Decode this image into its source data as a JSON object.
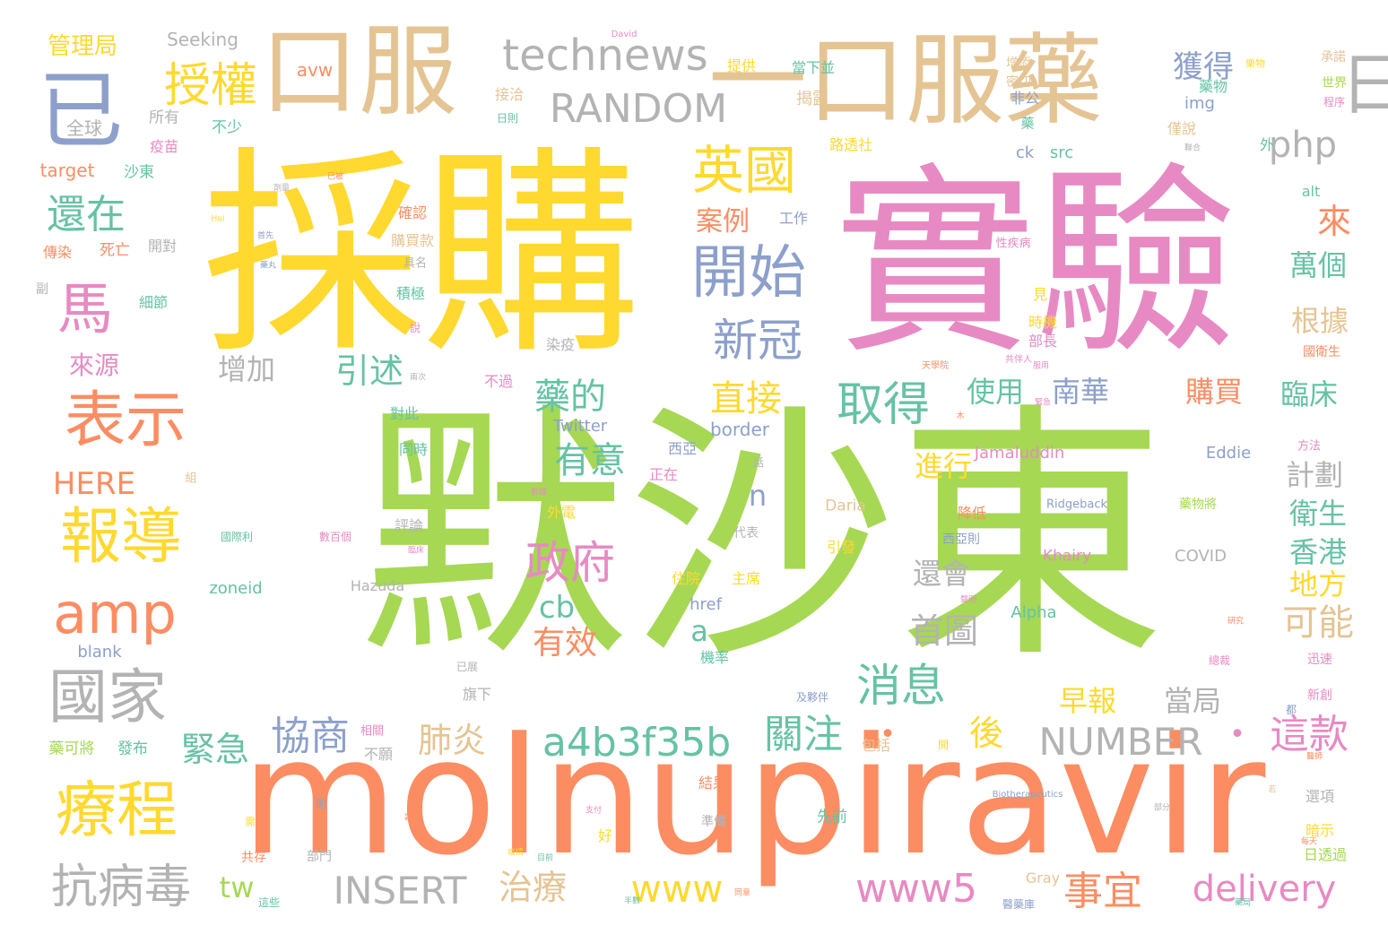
{
  "palette": {
    "green": "#a6d854",
    "yellow": "#ffd92f",
    "pink": "#e78ac3",
    "orange": "#fc8d62",
    "tan": "#e5c494",
    "teal": "#66c2a5",
    "blue": "#8da0cb",
    "gray": "#b3b3b3"
  },
  "words": [
    {
      "text": "默沙東",
      "weight": 100,
      "color": "green"
    },
    {
      "text": "採購",
      "weight": 68,
      "color": "yellow"
    },
    {
      "text": "實驗",
      "weight": 66,
      "color": "pink"
    },
    {
      "text": "molnupiravir",
      "weight": 50,
      "color": "orange"
    },
    {
      "text": "口服",
      "weight": 32,
      "color": "tan"
    },
    {
      "text": "一口服藥",
      "weight": 32,
      "color": "tan"
    },
    {
      "text": "已",
      "weight": 24,
      "color": "blue"
    },
    {
      "text": "日",
      "weight": 20,
      "color": "gray"
    },
    {
      "text": "表示",
      "weight": 18,
      "color": "orange"
    },
    {
      "text": "報導",
      "weight": 18,
      "color": "yellow"
    },
    {
      "text": "療程",
      "weight": 18,
      "color": "yellow"
    },
    {
      "text": "國家",
      "weight": 18,
      "color": "gray"
    },
    {
      "text": "開始",
      "weight": 17,
      "color": "blue"
    },
    {
      "text": "amp",
      "weight": 17,
      "color": "orange"
    },
    {
      "text": "馬",
      "weight": 17,
      "color": "pink"
    },
    {
      "text": "英國",
      "weight": 16,
      "color": "yellow"
    },
    {
      "text": "授權",
      "weight": 15,
      "color": "yellow"
    },
    {
      "text": "technews",
      "weight": 14,
      "color": "gray"
    },
    {
      "text": "取得",
      "weight": 14,
      "color": "teal"
    },
    {
      "text": "抗病毒",
      "weight": 14,
      "color": "gray"
    },
    {
      "text": "政府",
      "weight": 13,
      "color": "pink"
    },
    {
      "text": "新冠",
      "weight": 13,
      "color": "blue"
    },
    {
      "text": "消息",
      "weight": 13,
      "color": "teal"
    },
    {
      "text": "RANDOM",
      "weight": 12,
      "color": "gray"
    },
    {
      "text": "還在",
      "weight": 12,
      "color": "teal"
    },
    {
      "text": "a4b3f35b",
      "weight": 12,
      "color": "teal"
    },
    {
      "text": "協商",
      "weight": 12,
      "color": "blue"
    },
    {
      "text": "關注",
      "weight": 12,
      "color": "teal"
    },
    {
      "text": "•",
      "weight": 12,
      "color": "orange"
    },
    {
      "text": "NUMBER",
      "weight": 12,
      "color": "gray"
    },
    {
      "text": "•",
      "weight": 12,
      "color": "pink"
    },
    {
      "text": "這款",
      "weight": 12,
      "color": "pink"
    },
    {
      "text": "事宜",
      "weight": 12,
      "color": "orange"
    },
    {
      "text": "www5",
      "weight": 12,
      "color": "pink"
    },
    {
      "text": "INSERT",
      "weight": 12,
      "color": "gray"
    },
    {
      "text": "delivery",
      "weight": 12,
      "color": "pink"
    },
    {
      "text": "www",
      "weight": 12,
      "color": "yellow"
    },
    {
      "text": "php",
      "weight": 11,
      "color": "gray"
    },
    {
      "text": "獲得",
      "weight": 10,
      "color": "blue"
    },
    {
      "text": "直接",
      "weight": 11,
      "color": "yellow"
    },
    {
      "text": "有意",
      "weight": 11,
      "color": "teal"
    },
    {
      "text": "藥的",
      "weight": 11,
      "color": "teal"
    },
    {
      "text": "引述",
      "weight": 11,
      "color": "teal"
    },
    {
      "text": "肺炎",
      "weight": 11,
      "color": "tan"
    },
    {
      "text": "後",
      "weight": 11,
      "color": "yellow"
    },
    {
      "text": "首圖",
      "weight": 11,
      "color": "gray"
    },
    {
      "text": "可能",
      "weight": 11,
      "color": "tan"
    },
    {
      "text": "HERE",
      "weight": 10,
      "color": "orange"
    },
    {
      "text": "cb",
      "weight": 10,
      "color": "teal"
    },
    {
      "text": "有效",
      "weight": 10,
      "color": "orange"
    },
    {
      "text": "治療",
      "weight": 10,
      "color": "tan"
    },
    {
      "text": "緊急",
      "weight": 10,
      "color": "teal"
    },
    {
      "text": "來",
      "weight": 10,
      "color": "orange"
    },
    {
      "text": "案例",
      "weight": 9,
      "color": "orange"
    },
    {
      "text": "臨床",
      "weight": 9,
      "color": "teal"
    },
    {
      "text": "購買",
      "weight": 9,
      "color": "orange"
    },
    {
      "text": "使用",
      "weight": 9,
      "color": "teal"
    },
    {
      "text": "南華",
      "weight": 9,
      "color": "blue"
    },
    {
      "text": "進行",
      "weight": 9,
      "color": "yellow"
    },
    {
      "text": "還會",
      "weight": 9,
      "color": "gray"
    },
    {
      "text": "早報",
      "weight": 9,
      "color": "yellow"
    },
    {
      "text": "當局",
      "weight": 9,
      "color": "gray"
    },
    {
      "text": "增加",
      "weight": 9,
      "color": "gray"
    },
    {
      "text": "tw",
      "weight": 9,
      "color": "green"
    },
    {
      "text": "根據",
      "weight": 9,
      "color": "tan"
    },
    {
      "text": "萬個",
      "weight": 9,
      "color": "teal"
    },
    {
      "text": "計劃",
      "weight": 9,
      "color": "gray"
    },
    {
      "text": "衛生",
      "weight": 9,
      "color": "teal"
    },
    {
      "text": "香港",
      "weight": 9,
      "color": "teal"
    },
    {
      "text": "地方",
      "weight": 9,
      "color": "yellow"
    },
    {
      "text": "n",
      "weight": 9,
      "color": "blue"
    },
    {
      "text": "a",
      "weight": 9,
      "color": "teal"
    },
    {
      "text": "來源",
      "weight": 8,
      "color": "pink"
    },
    {
      "text": "管理局",
      "weight": 7,
      "color": "yellow"
    },
    {
      "text": "Seeking",
      "weight": 5,
      "color": "gray"
    },
    {
      "text": "avw",
      "weight": 5,
      "color": "orange"
    },
    {
      "text": "全球",
      "weight": 5,
      "color": "gray"
    },
    {
      "text": "所有",
      "weight": 5,
      "color": "gray"
    },
    {
      "text": "不少",
      "weight": 5,
      "color": "teal"
    },
    {
      "text": "target",
      "weight": 5,
      "color": "orange"
    },
    {
      "text": "沙東",
      "weight": 5,
      "color": "teal"
    },
    {
      "text": "疫苗",
      "weight": 4,
      "color": "pink"
    },
    {
      "text": "傳染",
      "weight": 4,
      "color": "orange"
    },
    {
      "text": "死亡",
      "weight": 4,
      "color": "orange"
    },
    {
      "text": "開對",
      "weight": 4,
      "color": "gray"
    },
    {
      "text": "副",
      "weight": 4,
      "color": "gray"
    },
    {
      "text": "細節",
      "weight": 4,
      "color": "teal"
    },
    {
      "text": "藥物",
      "weight": 4,
      "color": "teal"
    },
    {
      "text": "提供",
      "weight": 4,
      "color": "yellow"
    },
    {
      "text": "當下並",
      "weight": 4,
      "color": "teal"
    },
    {
      "text": "揭露",
      "weight": 4,
      "color": "tan"
    },
    {
      "text": "接洽",
      "weight": 4,
      "color": "tan"
    },
    {
      "text": "路透社",
      "weight": 4,
      "color": "yellow"
    },
    {
      "text": "確認",
      "weight": 4,
      "color": "orange"
    },
    {
      "text": "工作",
      "weight": 4,
      "color": "blue"
    },
    {
      "text": "購買款",
      "weight": 4,
      "color": "tan"
    },
    {
      "text": "積極",
      "weight": 4,
      "color": "teal"
    },
    {
      "text": "染疫",
      "weight": 4,
      "color": "gray"
    },
    {
      "text": "不過",
      "weight": 4,
      "color": "pink"
    },
    {
      "text": "對此",
      "weight": 4,
      "color": "teal"
    },
    {
      "text": "同時",
      "weight": 4,
      "color": "teal"
    },
    {
      "text": "Twitter",
      "weight": 4,
      "color": "blue"
    },
    {
      "text": "border",
      "weight": 4,
      "color": "blue"
    },
    {
      "text": "西亞",
      "weight": 4,
      "color": "blue"
    },
    {
      "text": "正在",
      "weight": 4,
      "color": "pink"
    },
    {
      "text": "Jamaluddin",
      "weight": 4,
      "color": "pink"
    },
    {
      "text": "Eddie",
      "weight": 4,
      "color": "blue"
    },
    {
      "text": "增添",
      "weight": 4,
      "color": "tan"
    },
    {
      "text": "密切",
      "weight": 4,
      "color": "tan"
    },
    {
      "text": "非公",
      "weight": 4,
      "color": "blue"
    },
    {
      "text": "img",
      "weight": 4,
      "color": "blue"
    },
    {
      "text": "僅說",
      "weight": 4,
      "color": "tan"
    },
    {
      "text": "src",
      "weight": 4,
      "color": "teal"
    },
    {
      "text": "ck",
      "weight": 4,
      "color": "blue"
    },
    {
      "text": "alt",
      "weight": 4,
      "color": "teal"
    },
    {
      "text": "承諾",
      "weight": 4,
      "color": "tan"
    },
    {
      "text": "世界",
      "weight": 4,
      "color": "green"
    },
    {
      "text": "外",
      "weight": 4,
      "color": "teal"
    },
    {
      "text": "見",
      "weight": 4,
      "color": "yellow"
    },
    {
      "text": "時機",
      "weight": 4,
      "color": "yellow"
    },
    {
      "text": "部長",
      "weight": 4,
      "color": "pink"
    },
    {
      "text": "國衛生",
      "weight": 4,
      "color": "orange"
    },
    {
      "text": "外電",
      "weight": 4,
      "color": "yellow"
    },
    {
      "text": "評論",
      "weight": 4,
      "color": "gray"
    },
    {
      "text": "Daria",
      "weight": 4,
      "color": "tan"
    },
    {
      "text": "引發",
      "weight": 4,
      "color": "yellow"
    },
    {
      "text": "西亞則",
      "weight": 4,
      "color": "blue"
    },
    {
      "text": "降低",
      "weight": 4,
      "color": "orange"
    },
    {
      "text": "藥物將",
      "weight": 4,
      "color": "green"
    },
    {
      "text": "Ridgeback",
      "weight": 3,
      "color": "blue"
    },
    {
      "text": "zoneid",
      "weight": 4,
      "color": "teal"
    },
    {
      "text": "Hazuda",
      "weight": 4,
      "color": "gray"
    },
    {
      "text": "住院",
      "weight": 4,
      "color": "yellow"
    },
    {
      "text": "主席",
      "weight": 4,
      "color": "yellow"
    },
    {
      "text": "Khairy",
      "weight": 4,
      "color": "pink"
    },
    {
      "text": "COVID",
      "weight": 4,
      "color": "gray"
    },
    {
      "text": "href",
      "weight": 4,
      "color": "blue"
    },
    {
      "text": "Alpha",
      "weight": 4,
      "color": "teal"
    },
    {
      "text": "blank",
      "weight": 4,
      "color": "blue"
    },
    {
      "text": "機率",
      "weight": 4,
      "color": "teal"
    },
    {
      "text": "旗下",
      "weight": 4,
      "color": "gray"
    },
    {
      "text": "迅速",
      "weight": 4,
      "color": "pink"
    },
    {
      "text": "新創",
      "weight": 4,
      "color": "pink"
    },
    {
      "text": "藥可將",
      "weight": 4,
      "color": "green"
    },
    {
      "text": "發布",
      "weight": 4,
      "color": "teal"
    },
    {
      "text": "相關",
      "weight": 3,
      "color": "pink"
    },
    {
      "text": "不願",
      "weight": 4,
      "color": "gray"
    },
    {
      "text": "包括",
      "weight": 4,
      "color": "tan"
    },
    {
      "text": "結果",
      "weight": 4,
      "color": "orange"
    },
    {
      "text": "先前",
      "weight": 4,
      "color": "teal"
    },
    {
      "text": "準備",
      "weight": 3,
      "color": "gray"
    },
    {
      "text": "選項",
      "weight": 4,
      "color": "gray"
    },
    {
      "text": "暗示",
      "weight": 4,
      "color": "yellow"
    },
    {
      "text": "日透過",
      "weight": 4,
      "color": "green"
    },
    {
      "text": "共存",
      "weight": 4,
      "color": "orange"
    },
    {
      "text": "部門",
      "weight": 4,
      "color": "gray"
    },
    {
      "text": "好",
      "weight": 4,
      "color": "yellow"
    },
    {
      "text": "Gray",
      "weight": 4,
      "color": "tan"
    },
    {
      "text": "醫藥庫",
      "weight": 3,
      "color": "blue"
    },
    {
      "text": "這些",
      "weight": 3,
      "color": "teal"
    },
    {
      "text": "數百個",
      "weight": 3,
      "color": "pink"
    },
    {
      "text": "國際利",
      "weight": 3,
      "color": "teal"
    },
    {
      "text": "代表",
      "weight": 3,
      "color": "gray"
    },
    {
      "text": "已展",
      "weight": 3,
      "color": "gray"
    },
    {
      "text": "具名",
      "weight": 3,
      "color": "gray"
    },
    {
      "text": "樂物",
      "weight": 3,
      "color": "yellow"
    },
    {
      "text": "David",
      "weight": 2,
      "color": "pink"
    },
    {
      "text": "日則",
      "weight": 3,
      "color": "teal"
    },
    {
      "text": "程序",
      "weight": 3,
      "color": "pink"
    },
    {
      "text": "性疾病",
      "weight": 3,
      "color": "pink"
    },
    {
      "text": "天學院",
      "weight": 2,
      "color": "orange"
    },
    {
      "text": "共伴人",
      "weight": 2,
      "color": "pink"
    },
    {
      "text": "Biotherapeutics",
      "weight": 2,
      "color": "blue"
    },
    {
      "text": "方法",
      "weight": 3,
      "color": "pink"
    },
    {
      "text": "說",
      "weight": 3,
      "color": "pink"
    },
    {
      "text": "話",
      "weight": 3,
      "color": "gray"
    },
    {
      "text": "組",
      "weight": 3,
      "color": "tan"
    },
    {
      "text": "藥",
      "weight": 4,
      "color": "teal"
    },
    {
      "text": "都",
      "weight": 3,
      "color": "blue"
    },
    {
      "text": "開",
      "weight": 3,
      "color": "yellow"
    },
    {
      "text": "則",
      "weight": 3,
      "color": "blue"
    },
    {
      "text": "需",
      "weight": 3,
      "color": "yellow"
    },
    {
      "text": "及夥伴",
      "weight": 3,
      "color": "blue"
    },
    {
      "text": "試吞",
      "weight": 2,
      "color": "orange"
    },
    {
      "text": "數據",
      "weight": 2,
      "color": "pink"
    },
    {
      "text": "臨床",
      "weight": 2,
      "color": "pink"
    },
    {
      "text": "目前",
      "weight": 2,
      "color": "teal"
    },
    {
      "text": "總裁",
      "weight": 3,
      "color": "pink"
    },
    {
      "text": "每天",
      "weight": 2,
      "color": "orange"
    },
    {
      "text": "疫情",
      "weight": 2,
      "color": "yellow"
    },
    {
      "text": "兩次",
      "weight": 2,
      "color": "gray"
    },
    {
      "text": "首先",
      "weight": 2,
      "color": "blue"
    },
    {
      "text": "已被",
      "weight": 2,
      "color": "orange"
    },
    {
      "text": "研究",
      "weight": 2,
      "color": "orange"
    },
    {
      "text": "藥丸",
      "weight": 2,
      "color": "blue"
    },
    {
      "text": "Hui",
      "weight": 2,
      "color": "yellow"
    },
    {
      "text": "聯合",
      "weight": 2,
      "color": "gray"
    },
    {
      "text": "緊急",
      "weight": 2,
      "color": "pink"
    },
    {
      "text": "醫師",
      "weight": 2,
      "color": "orange"
    },
    {
      "text": "劑量",
      "weight": 2,
      "color": "gray"
    },
    {
      "text": "同意",
      "weight": 2,
      "color": "orange"
    },
    {
      "text": "藥局",
      "weight": 2,
      "color": "teal"
    },
    {
      "text": "支付",
      "weight": 2,
      "color": "pink"
    },
    {
      "text": "部分",
      "weight": 2,
      "color": "gray"
    },
    {
      "text": "半數",
      "weight": 2,
      "color": "teal"
    },
    {
      "text": "服用",
      "weight": 2,
      "color": "pink"
    },
    {
      "text": "聲明",
      "weight": 2,
      "color": "pink"
    },
    {
      "text": "木",
      "weight": 2,
      "color": "orange"
    },
    {
      "text": "若",
      "weight": 2,
      "color": "tan"
    }
  ]
}
